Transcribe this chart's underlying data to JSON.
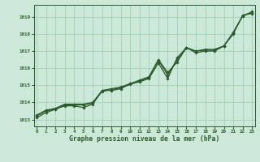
{
  "x": [
    0,
    1,
    2,
    3,
    4,
    5,
    6,
    7,
    8,
    9,
    10,
    11,
    12,
    13,
    14,
    15,
    16,
    17,
    18,
    19,
    20,
    21,
    22,
    23
  ],
  "line1": [
    1013.1,
    1013.4,
    1013.6,
    1013.8,
    1013.8,
    1013.7,
    1013.9,
    1014.7,
    1014.7,
    1014.8,
    1015.1,
    1015.2,
    1015.4,
    1016.3,
    1015.4,
    1016.6,
    1017.2,
    1016.9,
    1017.0,
    1017.0,
    1017.3,
    1018.0,
    1019.1,
    1019.2
  ],
  "line2": [
    1013.2,
    1013.5,
    1013.6,
    1013.85,
    1013.85,
    1013.85,
    1013.95,
    1014.65,
    1014.75,
    1014.85,
    1015.05,
    1015.25,
    1015.45,
    1016.45,
    1015.6,
    1016.5,
    1017.2,
    1017.0,
    1017.05,
    1017.05,
    1017.3,
    1018.05,
    1019.05,
    1019.25
  ],
  "line3": [
    1013.25,
    1013.55,
    1013.65,
    1013.9,
    1013.9,
    1013.9,
    1014.0,
    1014.7,
    1014.8,
    1014.9,
    1015.1,
    1015.3,
    1015.5,
    1016.5,
    1015.75,
    1016.35,
    1017.2,
    1017.0,
    1017.1,
    1017.1,
    1017.3,
    1018.1,
    1019.05,
    1019.3
  ],
  "bg_color": "#cce8d8",
  "grid_color": "#99ccb3",
  "line_color": "#2d5a2d",
  "marker_color": "#2d5a2d",
  "ylabel_ticks": [
    1013,
    1014,
    1015,
    1016,
    1017,
    1018,
    1019
  ],
  "ylim": [
    1012.6,
    1019.7
  ],
  "xlim": [
    -0.3,
    23.3
  ],
  "xlabel": "Graphe pression niveau de la mer (hPa)",
  "tick_color": "#2d5a2d",
  "axis_color": "#2d5a2d",
  "figsize": [
    3.2,
    2.0
  ],
  "dpi": 100
}
